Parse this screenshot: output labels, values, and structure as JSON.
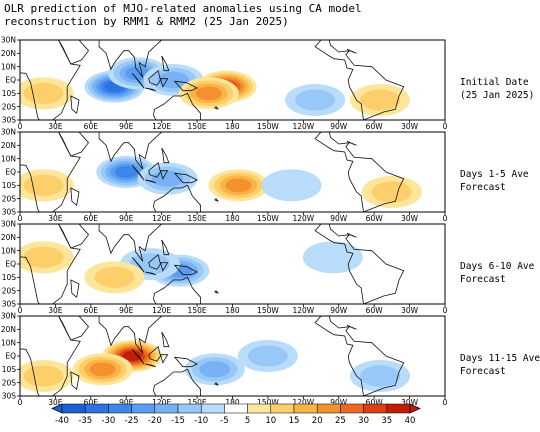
{
  "title": {
    "line1": "OLR prediction of MJO-related anomalies using CA model",
    "line2": "reconstruction by RMM1 & RMM2 (25 Jan 2025)"
  },
  "lat_labels": [
    "30N",
    "20N",
    "10N",
    "EQ",
    "10S",
    "20S",
    "30S"
  ],
  "lon_labels": [
    "0",
    "30E",
    "60E",
    "90E",
    "120E",
    "150E",
    "180",
    "150W",
    "120W",
    "90W",
    "60W",
    "30W",
    "0"
  ],
  "panels": [
    {
      "label_line1": "Initial Date",
      "label_line2": "(25 Jan 2025)"
    },
    {
      "label_line1": "Days 1-5 Ave",
      "label_line2": "Forecast"
    },
    {
      "label_line1": "Days 6-10 Ave",
      "label_line2": "Forecast"
    },
    {
      "label_line1": "Days 11-15 Ave",
      "label_line2": "Forecast"
    }
  ],
  "colorbar": {
    "labels": [
      "-40",
      "-35",
      "-30",
      "-25",
      "-20",
      "-15",
      "-10",
      "-5",
      "5",
      "10",
      "15",
      "20",
      "25",
      "30",
      "35",
      "40"
    ],
    "colors": [
      "#1e5fd4",
      "#2c72e0",
      "#3d86ea",
      "#5a9cf0",
      "#78b2f4",
      "#98c8f7",
      "#b8dcfa",
      "#ffffff",
      "#fde59a",
      "#fccf6a",
      "#f9b447",
      "#f4902e",
      "#ea6a1f",
      "#dc3f12",
      "#c01d0a"
    ]
  },
  "map_fields": {
    "panel_1": [
      {
        "lon": 80,
        "lat": -5,
        "value": -30
      },
      {
        "lon": 100,
        "lat": 5,
        "value": -20
      },
      {
        "lon": 130,
        "lat": 0,
        "value": -15
      },
      {
        "lon": 175,
        "lat": -5,
        "value": 30
      },
      {
        "lon": 160,
        "lat": -10,
        "value": 20
      },
      {
        "lon": 20,
        "lat": -10,
        "value": 10
      },
      {
        "lon": 305,
        "lat": -15,
        "value": 10
      },
      {
        "lon": 250,
        "lat": -15,
        "value": -10
      }
    ],
    "panel_2": [
      {
        "lon": 90,
        "lat": 0,
        "value": -25
      },
      {
        "lon": 125,
        "lat": -5,
        "value": -15
      },
      {
        "lon": 185,
        "lat": -10,
        "value": 20
      },
      {
        "lon": 20,
        "lat": -10,
        "value": 10
      },
      {
        "lon": 315,
        "lat": -15,
        "value": 10
      },
      {
        "lon": 230,
        "lat": -10,
        "value": -5
      }
    ],
    "panel_3": [
      {
        "lon": 135,
        "lat": -5,
        "value": -20
      },
      {
        "lon": 110,
        "lat": 0,
        "value": -10
      },
      {
        "lon": 20,
        "lat": 5,
        "value": 10
      },
      {
        "lon": 80,
        "lat": -10,
        "value": 10
      },
      {
        "lon": 265,
        "lat": 5,
        "value": -5
      }
    ],
    "panel_4": [
      {
        "lon": 95,
        "lat": 0,
        "value": 35
      },
      {
        "lon": 70,
        "lat": -10,
        "value": 20
      },
      {
        "lon": 165,
        "lat": -10,
        "value": -15
      },
      {
        "lon": 210,
        "lat": 0,
        "value": -10
      },
      {
        "lon": 305,
        "lat": -15,
        "value": -10
      },
      {
        "lon": 20,
        "lat": -15,
        "value": 10
      }
    ]
  }
}
